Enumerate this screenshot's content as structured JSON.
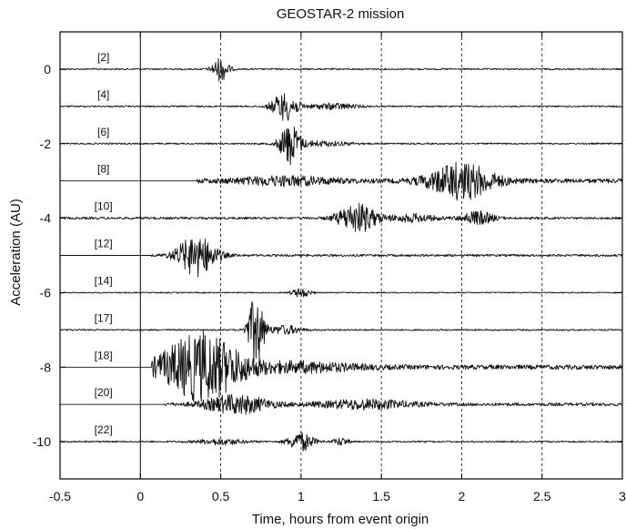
{
  "chart_data": {
    "type": "line",
    "title": "GEOSTAR-2 mission",
    "xlabel": "Time, hours from event origin",
    "ylabel": "Acceleration (AU)",
    "xlim": [
      -0.5,
      3
    ],
    "ylim": [
      -11,
      1
    ],
    "x_ticks": [
      -0.5,
      0,
      0.5,
      1,
      1.5,
      2,
      2.5,
      3
    ],
    "x_tick_labels": [
      "-0.5",
      "0",
      "0.5",
      "1",
      "1.5",
      "2",
      "2.5",
      "3"
    ],
    "y_ticks": [
      0,
      -2,
      -4,
      -6,
      -8,
      -10
    ],
    "y_tick_labels": [
      "0",
      "-2",
      "-4",
      "-6",
      "-8",
      "-10"
    ],
    "grid": "vertical dashed",
    "colors": {
      "trace": "#111111",
      "grid": "#222222",
      "axis": "#000000"
    },
    "series": [
      {
        "label": "[2]",
        "baseline": 0,
        "start": -0.5,
        "noise": 0.02,
        "bursts": [
          {
            "t": 0.5,
            "w": 0.05,
            "a": 0.32
          }
        ]
      },
      {
        "label": "[4]",
        "baseline": -1,
        "start": -0.5,
        "noise": 0.02,
        "bursts": [
          {
            "t": 0.9,
            "w": 0.08,
            "a": 0.38
          },
          {
            "t": 1.2,
            "w": 0.15,
            "a": 0.08
          }
        ]
      },
      {
        "label": "[6]",
        "baseline": -2,
        "start": -0.5,
        "noise": 0.02,
        "bursts": [
          {
            "t": 0.93,
            "w": 0.06,
            "a": 0.55
          },
          {
            "t": 1.1,
            "w": 0.2,
            "a": 0.07
          }
        ]
      },
      {
        "label": "[8]",
        "baseline": -3,
        "start": 0.35,
        "noise": 0.06,
        "bursts": [
          {
            "t": 2.0,
            "w": 0.2,
            "a": 0.48
          },
          {
            "t": 0.9,
            "w": 0.3,
            "a": 0.1
          }
        ]
      },
      {
        "label": "[10]",
        "baseline": -4,
        "start": -0.5,
        "noise": 0.03,
        "bursts": [
          {
            "t": 1.35,
            "w": 0.12,
            "a": 0.4
          },
          {
            "t": 2.1,
            "w": 0.1,
            "a": 0.18
          },
          {
            "t": 1.7,
            "w": 0.15,
            "a": 0.1
          }
        ]
      },
      {
        "label": "[12]",
        "baseline": -5,
        "start": 0.07,
        "noise": 0.03,
        "bursts": [
          {
            "t": 0.35,
            "w": 0.12,
            "a": 0.55
          }
        ]
      },
      {
        "label": "[14]",
        "baseline": -6,
        "start": -0.5,
        "noise": 0.015,
        "bursts": [
          {
            "t": 1.0,
            "w": 0.06,
            "a": 0.12
          }
        ]
      },
      {
        "label": "[17]",
        "baseline": -7,
        "start": -0.5,
        "noise": 0.02,
        "bursts": [
          {
            "t": 0.72,
            "w": 0.05,
            "a": 0.95
          },
          {
            "t": 0.9,
            "w": 0.1,
            "a": 0.12
          }
        ]
      },
      {
        "label": "[18]",
        "baseline": -8,
        "start": 0.07,
        "noise": 0.06,
        "bursts": [
          {
            "t": 0.38,
            "w": 0.25,
            "a": 0.9
          },
          {
            "t": 1.0,
            "w": 0.35,
            "a": 0.12
          }
        ]
      },
      {
        "label": "[20]",
        "baseline": -9,
        "start": 0.15,
        "noise": 0.04,
        "bursts": [
          {
            "t": 0.6,
            "w": 0.2,
            "a": 0.25
          },
          {
            "t": 1.4,
            "w": 0.3,
            "a": 0.12
          }
        ]
      },
      {
        "label": "[22]",
        "baseline": -10,
        "start": -0.5,
        "noise": 0.02,
        "bursts": [
          {
            "t": 1.0,
            "w": 0.08,
            "a": 0.25
          },
          {
            "t": 0.5,
            "w": 0.15,
            "a": 0.08
          },
          {
            "t": 1.25,
            "w": 0.05,
            "a": 0.1
          }
        ]
      }
    ]
  }
}
